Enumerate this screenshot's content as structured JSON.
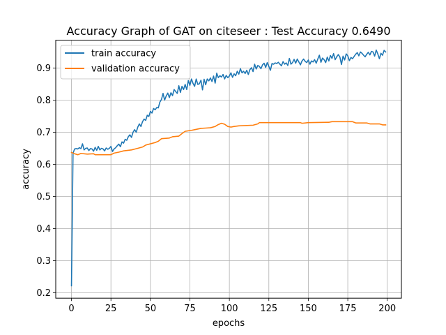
{
  "chart_data": {
    "type": "line",
    "title": "Accuracy Graph of GAT on citeseer : Test Accuracy 0.6490",
    "xlabel": "epochs",
    "ylabel": "accuracy",
    "xlim": [
      -9.95,
      208.95
    ],
    "ylim": [
      0.1833,
      0.9867
    ],
    "xticks": [
      0,
      25,
      50,
      75,
      100,
      125,
      150,
      175,
      200
    ],
    "xtick_labels": [
      "0",
      "25",
      "50",
      "75",
      "100",
      "125",
      "150",
      "175",
      "200"
    ],
    "yticks": [
      0.2,
      0.3,
      0.4,
      0.5,
      0.6,
      0.7,
      0.8,
      0.9
    ],
    "ytick_labels": [
      "0.2",
      "0.3",
      "0.4",
      "0.5",
      "0.6",
      "0.7",
      "0.8",
      "0.9"
    ],
    "grid": true,
    "legend_position": "top-left",
    "series": [
      {
        "name": "train accuracy",
        "color": "#1f77b4",
        "points": [
          [
            0,
            0.222
          ],
          [
            1,
            0.635
          ],
          [
            2,
            0.648
          ],
          [
            3,
            0.649
          ],
          [
            4,
            0.648
          ],
          [
            5,
            0.652
          ],
          [
            6,
            0.649
          ],
          [
            7,
            0.664
          ],
          [
            8,
            0.645
          ],
          [
            9,
            0.65
          ],
          [
            10,
            0.651
          ],
          [
            11,
            0.643
          ],
          [
            12,
            0.649
          ],
          [
            13,
            0.648
          ],
          [
            14,
            0.641
          ],
          [
            15,
            0.653
          ],
          [
            16,
            0.644
          ],
          [
            17,
            0.656
          ],
          [
            18,
            0.645
          ],
          [
            19,
            0.65
          ],
          [
            20,
            0.648
          ],
          [
            21,
            0.642
          ],
          [
            22,
            0.651
          ],
          [
            23,
            0.647
          ],
          [
            24,
            0.65
          ],
          [
            25,
            0.656
          ],
          [
            26,
            0.64
          ],
          [
            27,
            0.648
          ],
          [
            28,
            0.652
          ],
          [
            29,
            0.658
          ],
          [
            30,
            0.663
          ],
          [
            31,
            0.655
          ],
          [
            32,
            0.67
          ],
          [
            33,
            0.666
          ],
          [
            34,
            0.678
          ],
          [
            35,
            0.675
          ],
          [
            36,
            0.686
          ],
          [
            37,
            0.692
          ],
          [
            38,
            0.684
          ],
          [
            39,
            0.7
          ],
          [
            40,
            0.708
          ],
          [
            41,
            0.7
          ],
          [
            42,
            0.716
          ],
          [
            43,
            0.726
          ],
          [
            44,
            0.718
          ],
          [
            45,
            0.733
          ],
          [
            46,
            0.741
          ],
          [
            47,
            0.737
          ],
          [
            48,
            0.753
          ],
          [
            49,
            0.749
          ],
          [
            50,
            0.765
          ],
          [
            51,
            0.76
          ],
          [
            52,
            0.774
          ],
          [
            53,
            0.77
          ],
          [
            54,
            0.777
          ],
          [
            55,
            0.776
          ],
          [
            56,
            0.794
          ],
          [
            57,
            0.802
          ],
          [
            58,
            0.821
          ],
          [
            59,
            0.8
          ],
          [
            60,
            0.813
          ],
          [
            61,
            0.822
          ],
          [
            62,
            0.808
          ],
          [
            63,
            0.823
          ],
          [
            64,
            0.814
          ],
          [
            65,
            0.833
          ],
          [
            66,
            0.827
          ],
          [
            67,
            0.821
          ],
          [
            68,
            0.845
          ],
          [
            69,
            0.824
          ],
          [
            70,
            0.843
          ],
          [
            71,
            0.833
          ],
          [
            72,
            0.849
          ],
          [
            73,
            0.833
          ],
          [
            74,
            0.861
          ],
          [
            75,
            0.846
          ],
          [
            76,
            0.866
          ],
          [
            77,
            0.852
          ],
          [
            78,
            0.843
          ],
          [
            79,
            0.866
          ],
          [
            80,
            0.849
          ],
          [
            81,
            0.851
          ],
          [
            82,
            0.862
          ],
          [
            83,
            0.832
          ],
          [
            84,
            0.865
          ],
          [
            85,
            0.848
          ],
          [
            86,
            0.866
          ],
          [
            87,
            0.86
          ],
          [
            88,
            0.869
          ],
          [
            89,
            0.858
          ],
          [
            90,
            0.875
          ],
          [
            91,
            0.853
          ],
          [
            92,
            0.884
          ],
          [
            93,
            0.87
          ],
          [
            94,
            0.876
          ],
          [
            95,
            0.872
          ],
          [
            96,
            0.88
          ],
          [
            97,
            0.866
          ],
          [
            98,
            0.877
          ],
          [
            99,
            0.87
          ],
          [
            100,
            0.875
          ],
          [
            101,
            0.885
          ],
          [
            102,
            0.871
          ],
          [
            103,
            0.882
          ],
          [
            104,
            0.876
          ],
          [
            105,
            0.89
          ],
          [
            106,
            0.881
          ],
          [
            107,
            0.898
          ],
          [
            108,
            0.885
          ],
          [
            109,
            0.89
          ],
          [
            110,
            0.883
          ],
          [
            111,
            0.893
          ],
          [
            112,
            0.88
          ],
          [
            113,
            0.895
          ],
          [
            114,
            0.901
          ],
          [
            115,
            0.889
          ],
          [
            116,
            0.912
          ],
          [
            117,
            0.897
          ],
          [
            118,
            0.908
          ],
          [
            119,
            0.905
          ],
          [
            120,
            0.898
          ],
          [
            121,
            0.91
          ],
          [
            122,
            0.915
          ],
          [
            123,
            0.902
          ],
          [
            124,
            0.917
          ],
          [
            125,
            0.905
          ],
          [
            126,
            0.893
          ],
          [
            127,
            0.914
          ],
          [
            128,
            0.912
          ],
          [
            129,
            0.916
          ],
          [
            130,
            0.914
          ],
          [
            131,
            0.918
          ],
          [
            132,
            0.912
          ],
          [
            133,
            0.907
          ],
          [
            134,
            0.92
          ],
          [
            135,
            0.912
          ],
          [
            136,
            0.916
          ],
          [
            137,
            0.908
          ],
          [
            138,
            0.93
          ],
          [
            139,
            0.912
          ],
          [
            140,
            0.917
          ],
          [
            141,
            0.927
          ],
          [
            142,
            0.915
          ],
          [
            143,
            0.928
          ],
          [
            144,
            0.919
          ],
          [
            145,
            0.91
          ],
          [
            146,
            0.922
          ],
          [
            147,
            0.928
          ],
          [
            148,
            0.921
          ],
          [
            149,
            0.917
          ],
          [
            150,
            0.925
          ],
          [
            151,
            0.912
          ],
          [
            152,
            0.922
          ],
          [
            153,
            0.919
          ],
          [
            154,
            0.926
          ],
          [
            155,
            0.915
          ],
          [
            156,
            0.928
          ],
          [
            157,
            0.94
          ],
          [
            158,
            0.918
          ],
          [
            159,
            0.931
          ],
          [
            160,
            0.926
          ],
          [
            161,
            0.917
          ],
          [
            162,
            0.934
          ],
          [
            163,
            0.922
          ],
          [
            164,
            0.939
          ],
          [
            165,
            0.93
          ],
          [
            166,
            0.945
          ],
          [
            167,
            0.926
          ],
          [
            168,
            0.935
          ],
          [
            169,
            0.942
          ],
          [
            170,
            0.934
          ],
          [
            171,
            0.911
          ],
          [
            172,
            0.937
          ],
          [
            173,
            0.925
          ],
          [
            174,
            0.944
          ],
          [
            175,
            0.938
          ],
          [
            176,
            0.923
          ],
          [
            177,
            0.933
          ],
          [
            178,
            0.929
          ],
          [
            179,
            0.936
          ],
          [
            180,
            0.943
          ],
          [
            181,
            0.948
          ],
          [
            182,
            0.938
          ],
          [
            183,
            0.95
          ],
          [
            184,
            0.946
          ],
          [
            185,
            0.94
          ],
          [
            186,
            0.935
          ],
          [
            187,
            0.943
          ],
          [
            188,
            0.949
          ],
          [
            189,
            0.941
          ],
          [
            190,
            0.952
          ],
          [
            191,
            0.95
          ],
          [
            192,
            0.937
          ],
          [
            193,
            0.956
          ],
          [
            194,
            0.944
          ],
          [
            195,
            0.929
          ],
          [
            196,
            0.946
          ],
          [
            197,
            0.94
          ],
          [
            198,
            0.955
          ],
          [
            199,
            0.95
          ]
        ]
      },
      {
        "name": "validation accuracy",
        "color": "#ff7f0e",
        "points": [
          [
            0,
            0.637
          ],
          [
            2,
            0.633
          ],
          [
            4,
            0.63
          ],
          [
            6,
            0.634
          ],
          [
            10,
            0.632
          ],
          [
            14,
            0.633
          ],
          [
            15,
            0.63
          ],
          [
            25,
            0.63
          ],
          [
            27,
            0.635
          ],
          [
            30,
            0.638
          ],
          [
            33,
            0.642
          ],
          [
            38,
            0.645
          ],
          [
            42,
            0.65
          ],
          [
            45,
            0.654
          ],
          [
            47,
            0.66
          ],
          [
            50,
            0.664
          ],
          [
            53,
            0.668
          ],
          [
            55,
            0.672
          ],
          [
            57,
            0.68
          ],
          [
            62,
            0.682
          ],
          [
            64,
            0.686
          ],
          [
            68,
            0.688
          ],
          [
            70,
            0.696
          ],
          [
            72,
            0.703
          ],
          [
            76,
            0.706
          ],
          [
            78,
            0.708
          ],
          [
            82,
            0.712
          ],
          [
            85,
            0.713
          ],
          [
            88,
            0.714
          ],
          [
            91,
            0.718
          ],
          [
            93,
            0.724
          ],
          [
            95,
            0.728
          ],
          [
            97,
            0.725
          ],
          [
            99,
            0.718
          ],
          [
            101,
            0.716
          ],
          [
            103,
            0.718
          ],
          [
            106,
            0.72
          ],
          [
            115,
            0.722
          ],
          [
            118,
            0.726
          ],
          [
            119,
            0.73
          ],
          [
            145,
            0.73
          ],
          [
            146,
            0.728
          ],
          [
            148,
            0.729
          ],
          [
            150,
            0.73
          ],
          [
            163,
            0.731
          ],
          [
            165,
            0.733
          ],
          [
            178,
            0.733
          ],
          [
            180,
            0.729
          ],
          [
            187,
            0.729
          ],
          [
            189,
            0.726
          ],
          [
            195,
            0.726
          ],
          [
            197,
            0.723
          ],
          [
            199,
            0.723
          ]
        ]
      }
    ]
  }
}
